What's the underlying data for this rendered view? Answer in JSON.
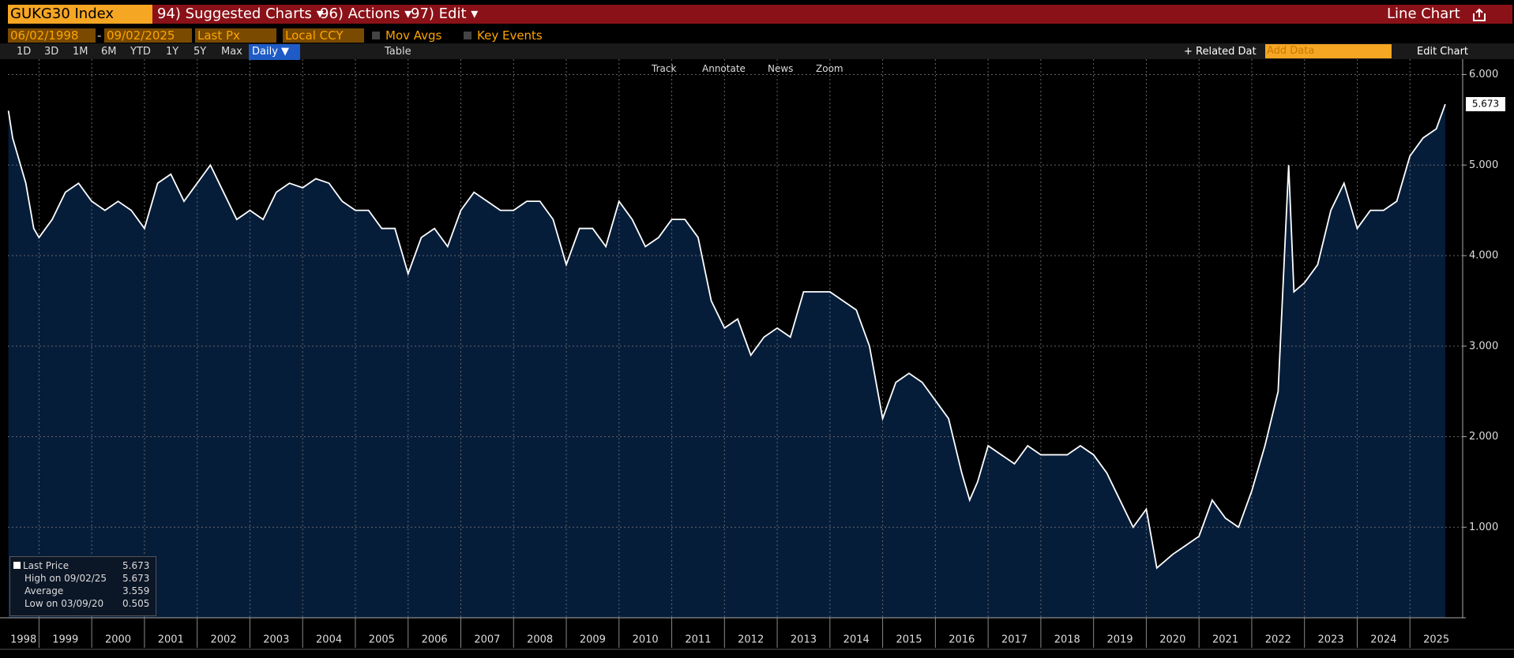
{
  "toolbar": {
    "security": "GUKG30 Index",
    "menus": [
      "94) Suggested Charts ▾",
      "96) Actions ▾",
      "97) Edit ▾"
    ],
    "chart_kind": "Line Chart",
    "start_date": "06/02/1998",
    "date_sep": "-",
    "end_date": "09/02/2025",
    "field": "Last Px",
    "currency": "Local CCY",
    "options": [
      "Mov Avgs",
      "Key Events"
    ],
    "periods": [
      "1D",
      "3D",
      "1M",
      "6M",
      "YTD",
      "1Y",
      "5Y",
      "Max"
    ],
    "frequency": "Daily ▼",
    "table": "Table",
    "related": "+ Related Dat",
    "add_data": "Add Data",
    "edit_chart": "Edit Chart",
    "tools": [
      "Track",
      "Annotate",
      "News",
      "Zoom"
    ]
  },
  "chart_data": {
    "type": "line",
    "color": "#ffffff",
    "area_color": "#061d3a",
    "grid": true,
    "x": [
      1998.42,
      1998.5,
      1998.75,
      1998.9,
      1999.0,
      1999.25,
      1999.5,
      1999.75,
      2000.0,
      2000.25,
      2000.5,
      2000.75,
      2001.0,
      2001.25,
      2001.5,
      2001.75,
      2002.0,
      2002.25,
      2002.5,
      2002.75,
      2003.0,
      2003.25,
      2003.5,
      2003.75,
      2004.0,
      2004.25,
      2004.5,
      2004.75,
      2005.0,
      2005.25,
      2005.5,
      2005.75,
      2006.0,
      2006.25,
      2006.5,
      2006.75,
      2007.0,
      2007.25,
      2007.5,
      2007.75,
      2008.0,
      2008.25,
      2008.5,
      2008.75,
      2009.0,
      2009.25,
      2009.5,
      2009.75,
      2010.0,
      2010.25,
      2010.5,
      2010.75,
      2011.0,
      2011.25,
      2011.5,
      2011.75,
      2012.0,
      2012.25,
      2012.5,
      2012.75,
      2013.0,
      2013.25,
      2013.5,
      2013.75,
      2014.0,
      2014.25,
      2014.5,
      2014.75,
      2015.0,
      2015.25,
      2015.5,
      2015.75,
      2016.0,
      2016.25,
      2016.5,
      2016.65,
      2016.8,
      2017.0,
      2017.25,
      2017.5,
      2017.75,
      2018.0,
      2018.25,
      2018.5,
      2018.75,
      2019.0,
      2019.25,
      2019.5,
      2019.75,
      2020.0,
      2020.2,
      2020.5,
      2020.75,
      2021.0,
      2021.25,
      2021.5,
      2021.75,
      2022.0,
      2022.25,
      2022.5,
      2022.7,
      2022.8,
      2023.0,
      2023.25,
      2023.5,
      2023.75,
      2024.0,
      2024.25,
      2024.5,
      2024.75,
      2025.0,
      2025.25,
      2025.5,
      2025.67
    ],
    "values": [
      5.6,
      5.3,
      4.8,
      4.3,
      4.2,
      4.4,
      4.7,
      4.8,
      4.6,
      4.5,
      4.6,
      4.5,
      4.3,
      4.8,
      4.9,
      4.6,
      4.8,
      5.0,
      4.7,
      4.4,
      4.5,
      4.4,
      4.7,
      4.8,
      4.75,
      4.85,
      4.8,
      4.6,
      4.5,
      4.5,
      4.3,
      4.3,
      3.8,
      4.2,
      4.3,
      4.1,
      4.5,
      4.7,
      4.6,
      4.5,
      4.5,
      4.6,
      4.6,
      4.4,
      3.9,
      4.3,
      4.3,
      4.1,
      4.6,
      4.4,
      4.1,
      4.2,
      4.4,
      4.4,
      4.2,
      3.5,
      3.2,
      3.3,
      2.9,
      3.1,
      3.2,
      3.1,
      3.6,
      3.6,
      3.6,
      3.5,
      3.4,
      3.0,
      2.2,
      2.6,
      2.7,
      2.6,
      2.4,
      2.2,
      1.6,
      1.3,
      1.5,
      1.9,
      1.8,
      1.7,
      1.9,
      1.8,
      1.8,
      1.8,
      1.9,
      1.8,
      1.6,
      1.3,
      1.0,
      1.2,
      0.55,
      0.7,
      0.8,
      0.9,
      1.3,
      1.1,
      1.0,
      1.4,
      1.9,
      2.5,
      5.0,
      3.6,
      3.7,
      3.9,
      4.5,
      4.8,
      4.3,
      4.5,
      4.5,
      4.6,
      5.1,
      5.3,
      5.4,
      5.673
    ],
    "xlim": [
      1998.41,
      2026.0
    ],
    "xticks": [
      1998,
      1999,
      2000,
      2001,
      2002,
      2003,
      2004,
      2005,
      2006,
      2007,
      2008,
      2009,
      2010,
      2011,
      2012,
      2013,
      2014,
      2015,
      2016,
      2017,
      2018,
      2019,
      2020,
      2021,
      2022,
      2023,
      2024,
      2025
    ],
    "ylim": [
      0,
      6.17
    ],
    "yticks": [
      {
        "value": 1,
        "label": "1.000"
      },
      {
        "value": 2,
        "label": "2.000"
      },
      {
        "value": 3,
        "label": "3.000"
      },
      {
        "value": 4,
        "label": "4.000"
      },
      {
        "value": 5,
        "label": "5.000"
      },
      {
        "value": 6,
        "label": "6.000"
      }
    ],
    "stats": [
      {
        "label": "Last Price",
        "value": 5.673
      },
      {
        "label": "High on 09/02/25",
        "value": 5.673
      },
      {
        "label": "Average",
        "value": 3.559
      },
      {
        "label": "Low on 03/09/20",
        "value": 0.505
      }
    ]
  }
}
